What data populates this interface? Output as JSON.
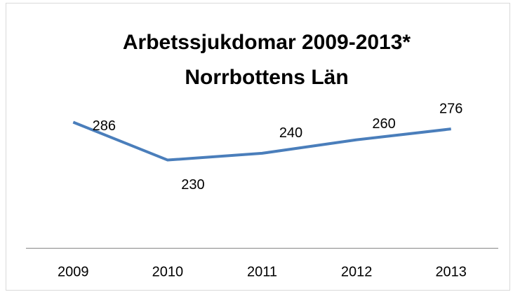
{
  "chart_data": {
    "type": "line",
    "title": [
      "Arbetssjukdomar 2009-2013*",
      "Norrbottens Län"
    ],
    "categories": [
      "2009",
      "2010",
      "2011",
      "2012",
      "2013"
    ],
    "series": [
      {
        "name": "Arbetssjukdomar",
        "color": "#4a7ebb",
        "values": [
          286,
          230,
          240,
          260,
          276
        ]
      }
    ],
    "ylim": [
      100,
      300
    ]
  }
}
